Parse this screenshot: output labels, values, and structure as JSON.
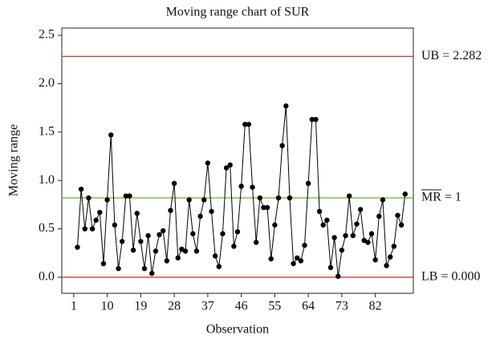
{
  "chart_data": {
    "type": "line",
    "title": "Moving range chart of SUR",
    "x_label": "Observation",
    "y_label": "Moving range",
    "x": [
      2,
      3,
      4,
      5,
      6,
      7,
      8,
      9,
      10,
      11,
      12,
      13,
      14,
      15,
      16,
      17,
      18,
      19,
      20,
      21,
      22,
      23,
      24,
      25,
      26,
      27,
      28,
      29,
      30,
      31,
      32,
      33,
      34,
      35,
      36,
      37,
      38,
      39,
      40,
      41,
      42,
      43,
      44,
      45,
      46,
      47,
      48,
      49,
      50,
      51,
      52,
      53,
      54,
      55,
      56,
      57,
      58,
      59,
      60,
      61,
      62,
      63,
      64,
      65,
      66,
      67,
      68,
      69,
      70,
      71,
      72,
      73,
      74,
      75,
      76,
      77,
      78,
      79,
      80,
      81,
      82,
      83,
      84,
      85,
      86,
      87,
      88,
      89,
      90
    ],
    "series": [
      {
        "name": "Moving range",
        "color": "#000000",
        "values": [
          0.31,
          0.91,
          0.5,
          0.82,
          0.5,
          0.59,
          0.67,
          0.14,
          0.8,
          1.47,
          0.54,
          0.09,
          0.37,
          0.84,
          0.84,
          0.28,
          0.66,
          0.37,
          0.09,
          0.43,
          0.04,
          0.27,
          0.44,
          0.48,
          0.17,
          0.69,
          0.97,
          0.2,
          0.29,
          0.27,
          0.8,
          0.45,
          0.27,
          0.63,
          0.8,
          1.18,
          0.68,
          0.22,
          0.11,
          0.45,
          1.13,
          1.16,
          0.32,
          0.47,
          0.94,
          1.58,
          1.58,
          0.93,
          0.36,
          0.82,
          0.72,
          0.72,
          0.19,
          0.54,
          0.82,
          1.36,
          1.77,
          0.82,
          0.14,
          0.2,
          0.17,
          0.33,
          0.97,
          1.63,
          1.63,
          0.68,
          0.54,
          0.59,
          0.1,
          0.41,
          0.01,
          0.28,
          0.43,
          0.84,
          0.43,
          0.55,
          0.7,
          0.38,
          0.36,
          0.45,
          0.18,
          0.63,
          0.8,
          0.12,
          0.21,
          0.32,
          0.64,
          0.54,
          0.86
        ]
      }
    ],
    "reference_lines": [
      {
        "value": 2.282,
        "label": "UB = 2.282",
        "color": "#e0302a"
      },
      {
        "value": 0.82,
        "label": "MR = 1",
        "color": "#6cbf3a",
        "overline_chars": 2
      },
      {
        "value": 0,
        "label": "LB = 0.000",
        "color": "#e0302a"
      }
    ],
    "xlim": [
      -2.2,
      92.2
    ],
    "ylim": [
      -0.166,
      2.575
    ],
    "xticks": [
      1,
      10,
      19,
      28,
      37,
      46,
      55,
      64,
      73,
      82
    ],
    "yticks": [
      {
        "value": 0,
        "label": "0.0"
      },
      0.5,
      {
        "value": 1,
        "label": "1.0"
      },
      1.5,
      {
        "value": 2,
        "label": "2.0"
      },
      2.5
    ]
  }
}
